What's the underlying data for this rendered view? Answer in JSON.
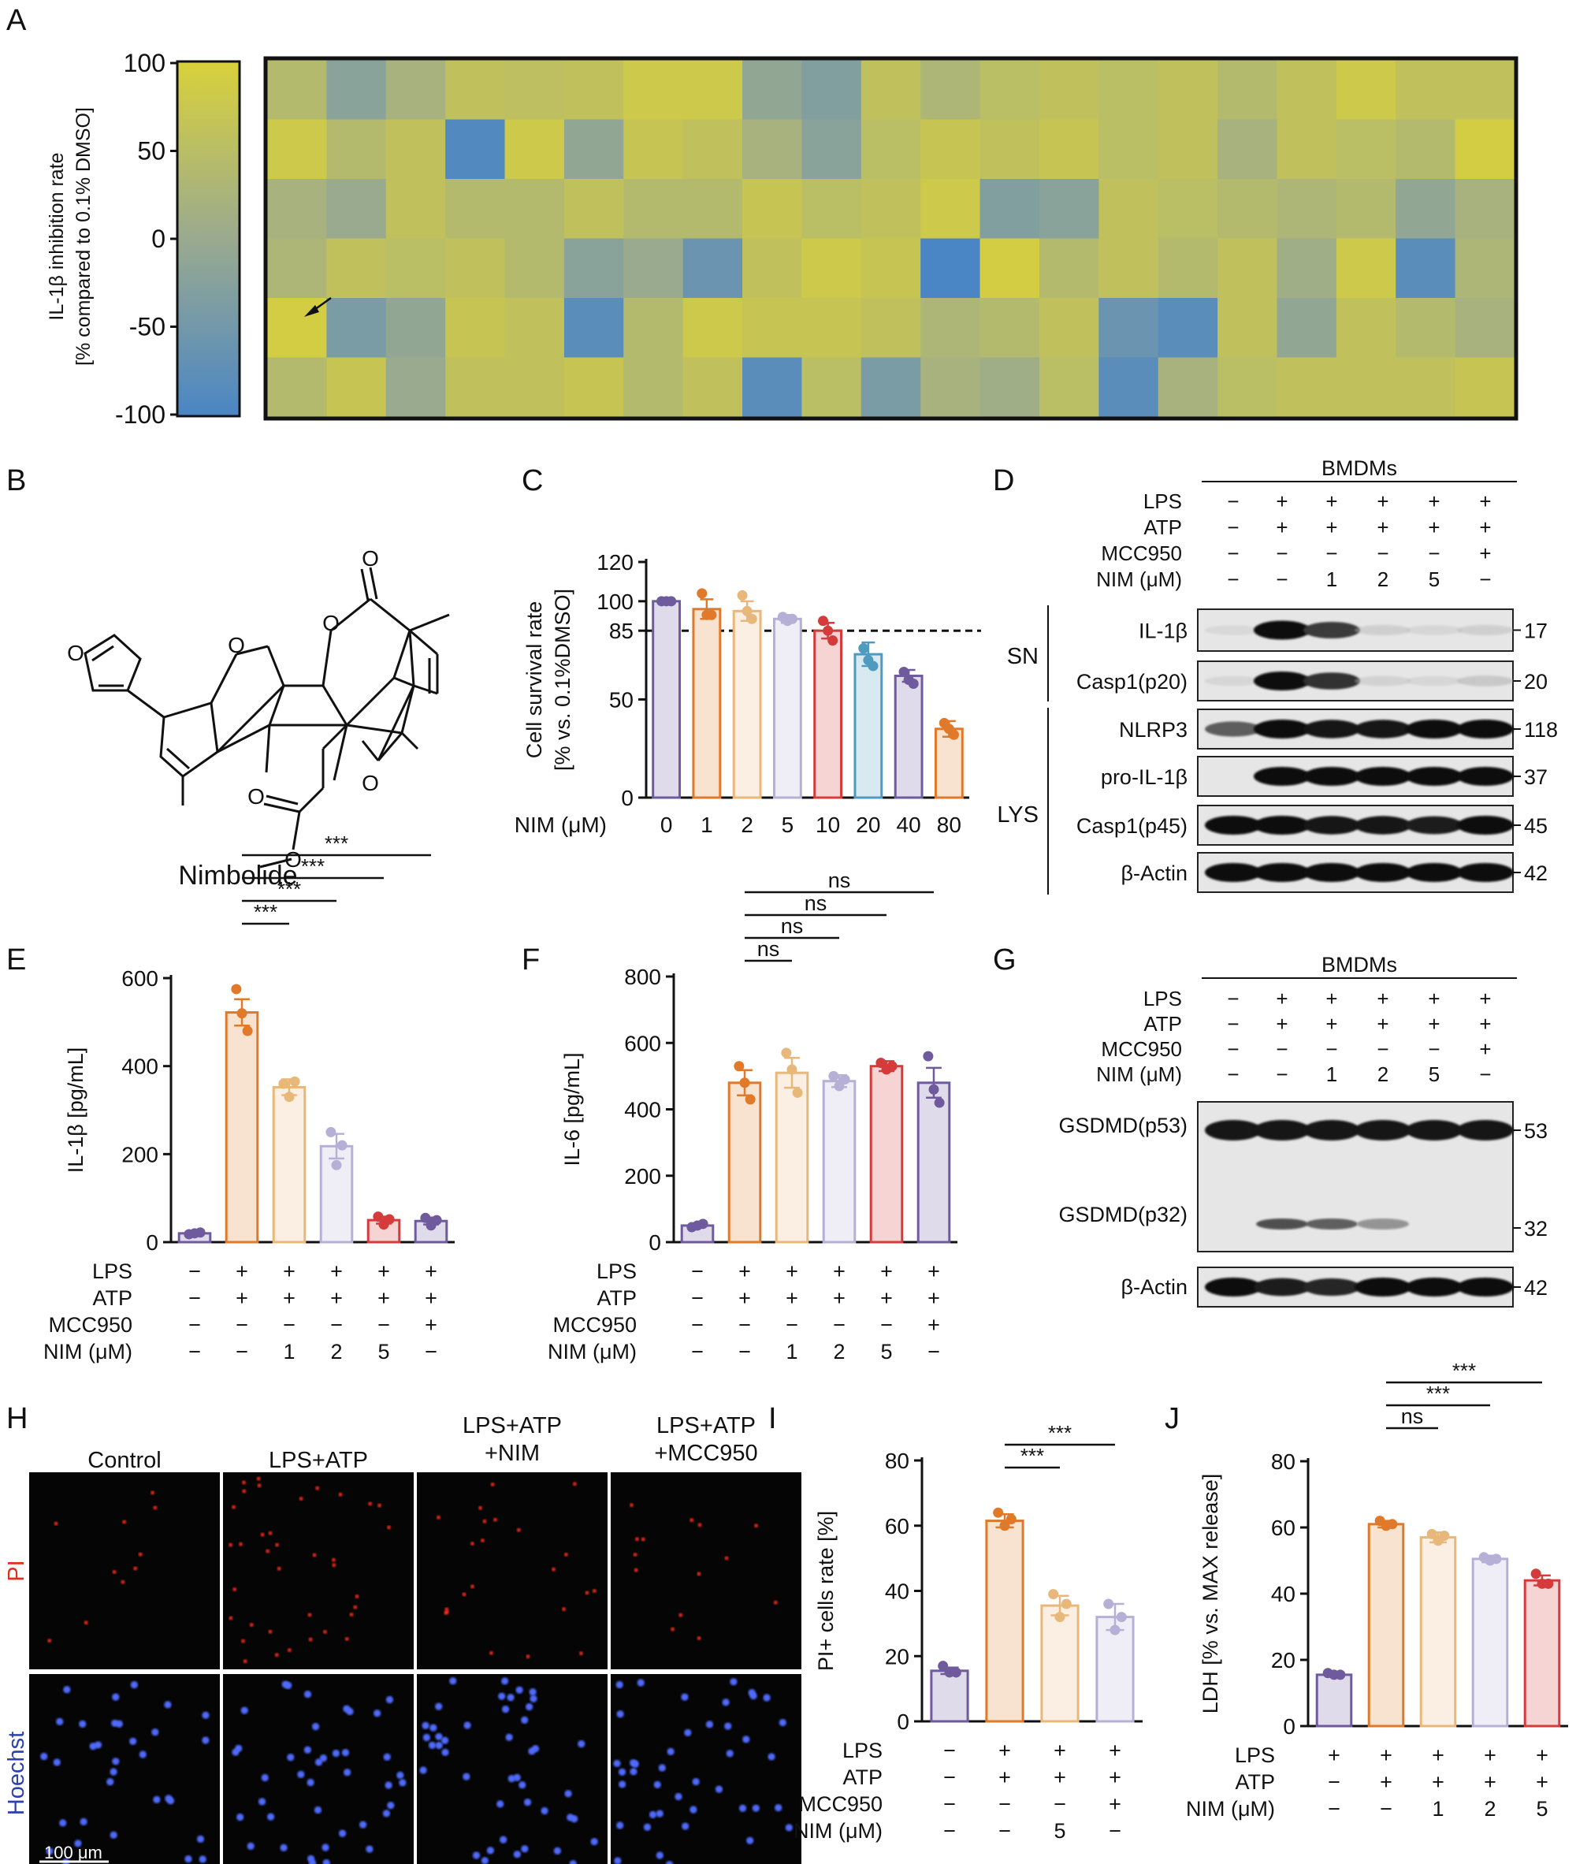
{
  "panel_letters": [
    "A",
    "B",
    "C",
    "D",
    "E",
    "F",
    "G",
    "H",
    "I",
    "J"
  ],
  "treatment_labels": {
    "lps": "LPS",
    "atp": "ATP",
    "mcc": "MCC950",
    "nim": "NIM (μM)"
  },
  "chart_data": [
    {
      "id": "A",
      "type": "heatmap",
      "rows": 6,
      "cols": 21,
      "colorbar": {
        "ticks": [
          "100",
          "50",
          "0",
          "-50",
          "-100"
        ],
        "min": -100,
        "max": 100,
        "colors": [
          "#4a86c5",
          "#9aaa8f",
          "#d9d13a"
        ]
      },
      "ylabel_line1": "IL-1β inhibition rate",
      "ylabel_line2": "[% compared to 0.1% DMSO]",
      "values": [
        [
          40,
          -20,
          20,
          60,
          55,
          60,
          80,
          80,
          -10,
          -30,
          60,
          30,
          50,
          60,
          50,
          60,
          40,
          60,
          80,
          60,
          60
        ],
        [
          80,
          40,
          60,
          -90,
          80,
          -10,
          70,
          60,
          20,
          -20,
          50,
          70,
          60,
          70,
          50,
          60,
          20,
          60,
          50,
          40,
          90
        ],
        [
          20,
          0,
          60,
          40,
          40,
          60,
          40,
          40,
          70,
          50,
          60,
          80,
          -30,
          -20,
          60,
          50,
          40,
          30,
          40,
          -10,
          20
        ],
        [
          30,
          60,
          50,
          60,
          40,
          -20,
          0,
          -60,
          60,
          80,
          70,
          -100,
          90,
          40,
          60,
          40,
          60,
          10,
          80,
          -80,
          30
        ],
        [
          90,
          -40,
          -10,
          70,
          60,
          -80,
          40,
          80,
          70,
          70,
          60,
          30,
          40,
          60,
          -60,
          -80,
          60,
          -10,
          60,
          40,
          20
        ],
        [
          40,
          70,
          0,
          60,
          60,
          70,
          40,
          60,
          -80,
          50,
          -40,
          20,
          10,
          50,
          -80,
          20,
          50,
          60,
          60,
          60,
          70
        ]
      ]
    },
    {
      "id": "C",
      "type": "bar",
      "title": "",
      "ylabel_line1": "Cell survival rate",
      "ylabel_line2": "[% vs. 0.1%DMSO]",
      "xlabel_prefix": "NIM (μM)",
      "categories": [
        "0",
        "1",
        "2",
        "5",
        "10",
        "20",
        "40",
        "80"
      ],
      "values": [
        100,
        96,
        95,
        91,
        85,
        73,
        62,
        35
      ],
      "sem": [
        0,
        5,
        5,
        2,
        4,
        6,
        3,
        4
      ],
      "points": [
        [
          100,
          100,
          100
        ],
        [
          104,
          93,
          93
        ],
        [
          103,
          95,
          91
        ],
        [
          92,
          90,
          91
        ],
        [
          90,
          85,
          80
        ],
        [
          76,
          70,
          67
        ],
        [
          64,
          60,
          58
        ],
        [
          38,
          35,
          32
        ]
      ],
      "colors": [
        "#6f5a9e",
        "#e07a2a",
        "#e8b87a",
        "#b7b0d6",
        "#d53b3b",
        "#4e9bbf",
        "#6f5a9e",
        "#e07a2a"
      ],
      "yticks": [
        "0",
        "50",
        "85",
        "100",
        "120"
      ],
      "ylim": [
        0,
        120
      ],
      "dashed_line": 85
    },
    {
      "id": "E",
      "type": "bar",
      "ylabel": "IL-1β [pg/mL]",
      "categories": [
        "1",
        "2",
        "3",
        "4",
        "5",
        "6"
      ],
      "values": [
        20,
        522,
        352,
        218,
        50,
        48
      ],
      "sem": [
        3,
        30,
        18,
        28,
        8,
        8
      ],
      "points": [
        [
          18,
          20,
          22
        ],
        [
          575,
          520,
          480
        ],
        [
          360,
          330,
          365
        ],
        [
          250,
          175,
          220
        ],
        [
          58,
          40,
          52
        ],
        [
          55,
          38,
          50
        ]
      ],
      "colors": [
        "#6f5a9e",
        "#e07a2a",
        "#e8b87a",
        "#b7b0d6",
        "#d53b3b",
        "#6f5a9e"
      ],
      "yticks": [
        "0",
        "200",
        "400",
        "600"
      ],
      "ylim": [
        0,
        600
      ],
      "sig": [
        {
          "from": 1,
          "to": 2,
          "label": "***"
        },
        {
          "from": 1,
          "to": 3,
          "label": "***"
        },
        {
          "from": 1,
          "to": 4,
          "label": "***"
        },
        {
          "from": 1,
          "to": 5,
          "label": "***"
        }
      ],
      "rows": {
        "lps": [
          "−",
          "+",
          "+",
          "+",
          "+",
          "+"
        ],
        "atp": [
          "−",
          "+",
          "+",
          "+",
          "+",
          "+"
        ],
        "mcc": [
          "−",
          "−",
          "−",
          "−",
          "−",
          "+"
        ],
        "nim": [
          "−",
          "−",
          "1",
          "2",
          "5",
          "−"
        ]
      }
    },
    {
      "id": "F",
      "type": "bar",
      "ylabel": "IL-6 [pg/mL]",
      "categories": [
        "1",
        "2",
        "3",
        "4",
        "5",
        "6"
      ],
      "values": [
        50,
        480,
        510,
        485,
        530,
        480
      ],
      "sem": [
        4,
        38,
        45,
        18,
        15,
        45
      ],
      "points": [
        [
          45,
          50,
          55
        ],
        [
          530,
          480,
          430
        ],
        [
          570,
          520,
          450
        ],
        [
          500,
          470,
          490
        ],
        [
          540,
          520,
          530
        ],
        [
          560,
          460,
          420
        ]
      ],
      "colors": [
        "#6f5a9e",
        "#e07a2a",
        "#e8b87a",
        "#b7b0d6",
        "#d53b3b",
        "#6f5a9e"
      ],
      "yticks": [
        "0",
        "200",
        "400",
        "600",
        "800"
      ],
      "ylim": [
        0,
        800
      ],
      "sig": [
        {
          "from": 1,
          "to": 2,
          "label": "ns"
        },
        {
          "from": 1,
          "to": 3,
          "label": "ns"
        },
        {
          "from": 1,
          "to": 4,
          "label": "ns"
        },
        {
          "from": 1,
          "to": 5,
          "label": "ns"
        }
      ],
      "rows": {
        "lps": [
          "−",
          "+",
          "+",
          "+",
          "+",
          "+"
        ],
        "atp": [
          "−",
          "+",
          "+",
          "+",
          "+",
          "+"
        ],
        "mcc": [
          "−",
          "−",
          "−",
          "−",
          "−",
          "+"
        ],
        "nim": [
          "−",
          "−",
          "1",
          "2",
          "5",
          "−"
        ]
      }
    },
    {
      "id": "I",
      "type": "bar",
      "ylabel": "PI+ cells rate [%]",
      "categories": [
        "1",
        "2",
        "3",
        "4"
      ],
      "values": [
        15.5,
        61.5,
        35.5,
        32
      ],
      "sem": [
        1,
        2,
        3,
        4
      ],
      "points": [
        [
          17,
          15,
          15
        ],
        [
          64,
          60,
          62
        ],
        [
          39,
          32,
          36
        ],
        [
          36,
          28,
          32
        ]
      ],
      "colors": [
        "#6f5a9e",
        "#e07a2a",
        "#e8b87a",
        "#b7b0d6"
      ],
      "yticks": [
        "0",
        "20",
        "40",
        "60",
        "80"
      ],
      "ylim": [
        0,
        80
      ],
      "sig": [
        {
          "from": 1,
          "to": 2,
          "label": "***"
        },
        {
          "from": 1,
          "to": 3,
          "label": "***"
        }
      ],
      "rows": {
        "lps": [
          "−",
          "+",
          "+",
          "+"
        ],
        "atp": [
          "−",
          "+",
          "+",
          "+"
        ],
        "mcc": [
          "−",
          "−",
          "−",
          "+"
        ],
        "nim": [
          "−",
          "−",
          "5",
          "−"
        ]
      }
    },
    {
      "id": "J",
      "type": "bar",
      "ylabel": "LDH [% vs. MAX release]",
      "categories": [
        "1",
        "2",
        "3",
        "4",
        "5"
      ],
      "values": [
        15.5,
        61,
        57,
        50.5,
        44
      ],
      "sem": [
        0.5,
        1,
        1.5,
        1,
        1.5
      ],
      "points": [
        [
          16,
          15.5,
          15.5
        ],
        [
          62,
          60.5,
          61
        ],
        [
          58,
          56,
          57.5
        ],
        [
          51,
          50,
          50.5
        ],
        [
          46,
          43,
          43
        ]
      ],
      "colors": [
        "#6f5a9e",
        "#e07a2a",
        "#e8b87a",
        "#b7b0d6",
        "#d53b3b"
      ],
      "yticks": [
        "0",
        "20",
        "40",
        "60",
        "80"
      ],
      "ylim": [
        0,
        80
      ],
      "sig": [
        {
          "from": 1,
          "to": 2,
          "label": "ns"
        },
        {
          "from": 1,
          "to": 3,
          "label": "***"
        },
        {
          "from": 1,
          "to": 4,
          "label": "***"
        }
      ],
      "rows": {
        "lps": [
          "+",
          "+",
          "+",
          "+",
          "+"
        ],
        "atp": [
          "−",
          "+",
          "+",
          "+",
          "+"
        ],
        "nim": [
          "−",
          "−",
          "1",
          "2",
          "5"
        ]
      }
    }
  ],
  "compound_name": "Nimbolide",
  "blot_D": {
    "header": "BMDMs",
    "rows": {
      "lps": [
        "−",
        "+",
        "+",
        "+",
        "+",
        "+"
      ],
      "atp": [
        "−",
        "+",
        "+",
        "+",
        "+",
        "+"
      ],
      "mcc": [
        "−",
        "−",
        "−",
        "−",
        "−",
        "+"
      ],
      "nim": [
        "−",
        "−",
        "1",
        "2",
        "5",
        "−"
      ]
    },
    "groups": [
      "SN",
      "LYS"
    ],
    "strips": [
      {
        "label": "IL-1β",
        "mw": "17",
        "intensity": [
          0.03,
          1,
          0.75,
          0.1,
          0.05,
          0.1
        ]
      },
      {
        "label": "Casp1(p20)",
        "mw": "20",
        "intensity": [
          0.05,
          1,
          0.8,
          0.08,
          0.05,
          0.15
        ]
      },
      {
        "label": "NLRP3",
        "mw": "118",
        "intensity": [
          0.6,
          1,
          0.95,
          0.95,
          1,
          1
        ]
      },
      {
        "label": "pro-IL-1β",
        "mw": "37",
        "intensity": [
          0.0,
          1,
          1,
          1,
          1,
          1
        ]
      },
      {
        "label": "Casp1(p45)",
        "mw": "45",
        "intensity": [
          1,
          1,
          0.95,
          0.95,
          0.9,
          1
        ]
      },
      {
        "label": "β-Actin",
        "mw": "42",
        "intensity": [
          1,
          1,
          1,
          1,
          1,
          1
        ]
      }
    ]
  },
  "blot_G": {
    "header": "BMDMs",
    "rows": {
      "lps": [
        "−",
        "+",
        "+",
        "+",
        "+",
        "+"
      ],
      "atp": [
        "−",
        "+",
        "+",
        "+",
        "+",
        "+"
      ],
      "mcc": [
        "−",
        "−",
        "−",
        "−",
        "−",
        "+"
      ],
      "nim": [
        "−",
        "−",
        "1",
        "2",
        "5",
        "−"
      ]
    },
    "p53": {
      "label": "GSDMD(p53)",
      "mw": "53",
      "intensity": [
        1,
        1,
        1,
        1,
        1,
        1
      ]
    },
    "p32": {
      "label": "GSDMD(p32)",
      "mw": "32",
      "intensity": [
        0,
        0.8,
        0.7,
        0.35,
        0,
        0
      ]
    },
    "actin": {
      "label": "β-Actin",
      "mw": "42",
      "intensity": [
        1,
        0.9,
        0.85,
        1,
        1,
        1
      ]
    }
  },
  "micro_H": {
    "columns": [
      "Control",
      "LPS+ATP",
      "LPS+ATP\n+NIM",
      "LPS+ATP\n+MCC950"
    ],
    "row_labels": [
      "PI",
      "Hoechst"
    ],
    "row_colors": [
      "#e0301e",
      "#2c40b0"
    ],
    "scale_bar": "100 μm"
  }
}
